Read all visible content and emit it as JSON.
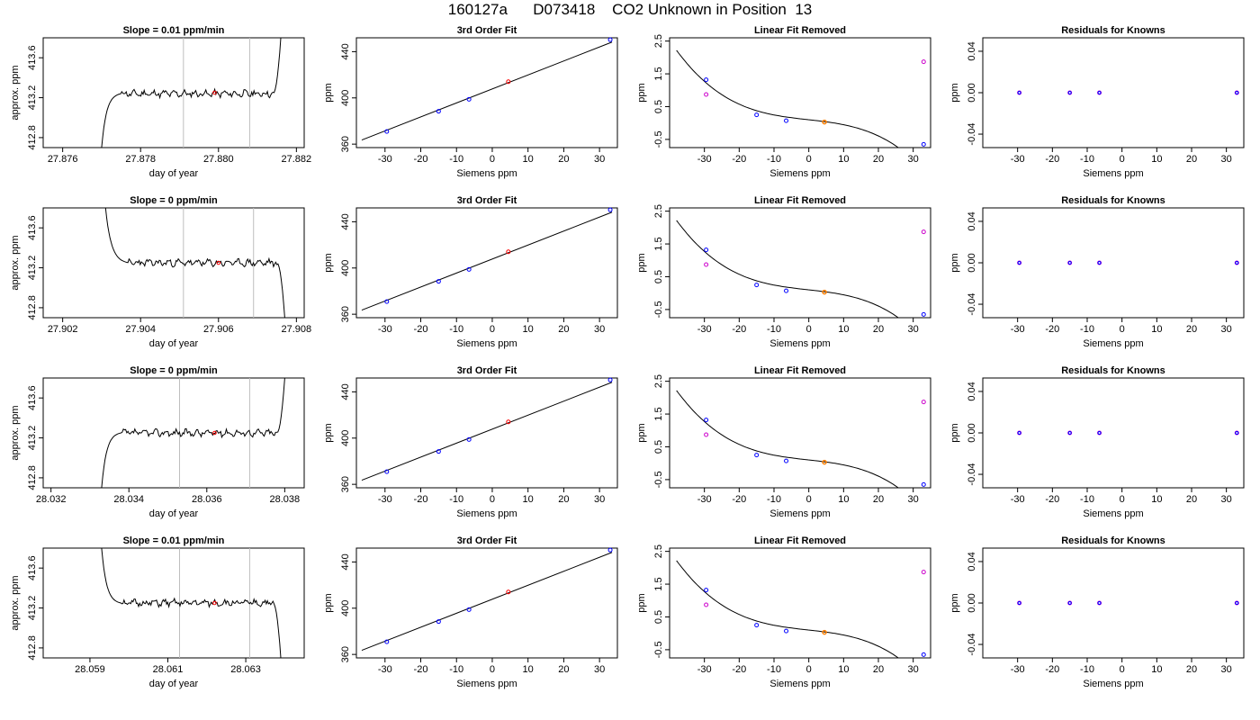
{
  "page_title": "160127a      D073418    CO2 Unknown in Position  13",
  "colors": {
    "known": "#0000ff",
    "unknown": "#ff0000",
    "residual": "#cc00cc",
    "raw_known": "#cc00cc",
    "linear_unknown": "#ff7f00",
    "line": "#000000",
    "window": "#bebebe"
  },
  "rows": [
    {
      "time_panel": {
        "title": "Slope =  0.01  ppm/min",
        "xlabel": "day of year",
        "ylabel": "approx. ppm",
        "xlim": [
          27.8755,
          27.8822
        ],
        "ylim": [
          412.7,
          413.8
        ],
        "xticks": [
          27.876,
          27.878,
          27.88,
          27.882
        ],
        "xtick_labels": [
          "27.876",
          "27.878",
          "27.880",
          "27.882"
        ],
        "yticks": [
          412.8,
          413.2,
          413.6
        ],
        "ytick_labels": [
          "412.8",
          "413.2",
          "413.6"
        ],
        "window": [
          27.8791,
          27.8808
        ],
        "mean_point": {
          "x": 27.8799,
          "y": 413.25
        },
        "trace": {
          "x0": 27.877,
          "rise_end": 27.8775,
          "plateau_end": 27.8814,
          "x_end": 27.8816,
          "start_y": 412.7,
          "plateau_y": 413.24,
          "end_y": 413.8,
          "start_dir": "up",
          "end_dir": "up",
          "seed": 11
        }
      },
      "fit_panel": {
        "title": "3rd Order Fit",
        "xlabel": "Siemens ppm",
        "ylabel": "ppm",
        "xlim": [
          -38,
          35
        ],
        "ylim": [
          357,
          452
        ],
        "xticks": [
          -30,
          -20,
          -10,
          0,
          10,
          20,
          30
        ],
        "yticks": [
          360,
          400,
          440
        ],
        "curve_intercept": 413.2,
        "curve_slope": 1.21,
        "known_points": [
          [
            -29.5,
            370.9
          ],
          [
            -15,
            388.4
          ],
          [
            -6.5,
            398.8
          ],
          [
            33,
            450.3
          ]
        ],
        "unknown_points": [
          [
            4.5,
            414.0
          ]
        ]
      },
      "linear_panel": {
        "title": "Linear Fit Removed",
        "xlabel": "Siemens ppm",
        "ylabel": "ppm",
        "xlim": [
          -40,
          35
        ],
        "ylim": [
          -0.75,
          2.6
        ],
        "xticks": [
          -30,
          -20,
          -10,
          0,
          10,
          20,
          30
        ],
        "yticks": [
          -0.5,
          0.5,
          1.5,
          2.5
        ],
        "curve": {
          "a": 0.1,
          "b": -0.0118,
          "c": -2.5e-05,
          "d": -3.11e-05
        },
        "known_points": [
          [
            -29.5,
            1.32
          ],
          [
            -15,
            0.25
          ],
          [
            -6.5,
            0.07
          ],
          [
            33,
            -0.65
          ]
        ],
        "raw_points": [
          [
            -29.5,
            0.87
          ],
          [
            33,
            1.87
          ]
        ],
        "unknown_points": [
          [
            4.5,
            0.03
          ]
        ]
      },
      "residual_panel": {
        "title": "Residuals for Knowns",
        "xlabel": "Siemens ppm",
        "ylabel": "ppm",
        "xlim": [
          -40,
          35
        ],
        "ylim": [
          -0.053,
          0.053
        ],
        "xticks": [
          -30,
          -20,
          -10,
          0,
          10,
          20,
          30
        ],
        "yticks": [
          -0.04,
          0,
          0.04
        ],
        "ytick_labels": [
          "-0.04",
          "0.00",
          "0.04"
        ],
        "points": [
          [
            -29.5,
            0
          ],
          [
            -15,
            0
          ],
          [
            -6.5,
            0
          ],
          [
            33,
            0
          ]
        ]
      }
    },
    {
      "time_panel": {
        "title": "Slope =  0  ppm/min",
        "xlabel": "day of year",
        "ylabel": "approx. ppm",
        "xlim": [
          27.9015,
          27.9082
        ],
        "ylim": [
          412.7,
          413.8
        ],
        "xticks": [
          27.902,
          27.904,
          27.906,
          27.908
        ],
        "xtick_labels": [
          "27.902",
          "27.904",
          "27.906",
          "27.908"
        ],
        "yticks": [
          412.8,
          413.2,
          413.6
        ],
        "ytick_labels": [
          "412.8",
          "413.2",
          "413.6"
        ],
        "window": [
          27.9051,
          27.9069
        ],
        "mean_point": {
          "x": 27.906,
          "y": 413.25
        },
        "trace": {
          "x0": 27.9031,
          "rise_end": 27.9037,
          "plateau_end": 27.9075,
          "x_end": 27.9077,
          "start_y": 413.8,
          "plateau_y": 413.25,
          "end_y": 412.7,
          "start_dir": "down",
          "end_dir": "down",
          "seed": 23
        }
      },
      "fit_panel": {
        "title": "3rd Order Fit",
        "xlabel": "Siemens ppm",
        "ylabel": "ppm",
        "xlim": [
          -38,
          35
        ],
        "ylim": [
          357,
          452
        ],
        "xticks": [
          -30,
          -20,
          -10,
          0,
          10,
          20,
          30
        ],
        "yticks": [
          360,
          400,
          440
        ],
        "curve_intercept": 413.2,
        "curve_slope": 1.21,
        "known_points": [
          [
            -29.5,
            370.9
          ],
          [
            -15,
            388.4
          ],
          [
            -6.5,
            398.8
          ],
          [
            33,
            450.3
          ]
        ],
        "unknown_points": [
          [
            4.5,
            414.0
          ]
        ]
      },
      "linear_panel": {
        "title": "Linear Fit Removed",
        "xlabel": "Siemens ppm",
        "ylabel": "ppm",
        "xlim": [
          -40,
          35
        ],
        "ylim": [
          -0.75,
          2.6
        ],
        "xticks": [
          -30,
          -20,
          -10,
          0,
          10,
          20,
          30
        ],
        "yticks": [
          -0.5,
          0.5,
          1.5,
          2.5
        ],
        "curve": {
          "a": 0.1,
          "b": -0.0118,
          "c": -2.5e-05,
          "d": -3.11e-05
        },
        "known_points": [
          [
            -29.5,
            1.32
          ],
          [
            -15,
            0.25
          ],
          [
            -6.5,
            0.07
          ],
          [
            33,
            -0.65
          ]
        ],
        "raw_points": [
          [
            -29.5,
            0.87
          ],
          [
            33,
            1.87
          ]
        ],
        "unknown_points": [
          [
            4.5,
            0.03
          ]
        ]
      },
      "residual_panel": {
        "title": "Residuals for Knowns",
        "xlabel": "Siemens ppm",
        "ylabel": "ppm",
        "xlim": [
          -40,
          35
        ],
        "ylim": [
          -0.053,
          0.053
        ],
        "xticks": [
          -30,
          -20,
          -10,
          0,
          10,
          20,
          30
        ],
        "yticks": [
          -0.04,
          0,
          0.04
        ],
        "ytick_labels": [
          "-0.04",
          "0.00",
          "0.04"
        ],
        "points": [
          [
            -29.5,
            0
          ],
          [
            -15,
            0
          ],
          [
            -6.5,
            0
          ],
          [
            33,
            0
          ]
        ]
      }
    },
    {
      "time_panel": {
        "title": "Slope =  0  ppm/min",
        "xlabel": "day of year",
        "ylabel": "approx. ppm",
        "xlim": [
          28.0318,
          28.0385
        ],
        "ylim": [
          412.7,
          413.8
        ],
        "xticks": [
          28.032,
          28.034,
          28.036,
          28.038
        ],
        "xtick_labels": [
          "28.032",
          "28.034",
          "28.036",
          "28.038"
        ],
        "yticks": [
          412.8,
          413.2,
          413.6
        ],
        "ytick_labels": [
          "412.8",
          "413.2",
          "413.6"
        ],
        "window": [
          28.0353,
          28.0371
        ],
        "mean_point": {
          "x": 28.0362,
          "y": 413.25
        },
        "trace": {
          "x0": 28.0333,
          "rise_end": 28.0338,
          "plateau_end": 28.0378,
          "x_end": 28.038,
          "start_y": 412.7,
          "plateau_y": 413.25,
          "end_y": 413.8,
          "start_dir": "up",
          "end_dir": "up",
          "seed": 37
        }
      },
      "fit_panel": {
        "title": "3rd Order Fit",
        "xlabel": "Siemens ppm",
        "ylabel": "ppm",
        "xlim": [
          -38,
          35
        ],
        "ylim": [
          357,
          452
        ],
        "xticks": [
          -30,
          -20,
          -10,
          0,
          10,
          20,
          30
        ],
        "yticks": [
          360,
          400,
          440
        ],
        "curve_intercept": 413.2,
        "curve_slope": 1.21,
        "known_points": [
          [
            -29.5,
            370.9
          ],
          [
            -15,
            388.4
          ],
          [
            -6.5,
            398.8
          ],
          [
            33,
            450.3
          ]
        ],
        "unknown_points": [
          [
            4.5,
            414.0
          ]
        ]
      },
      "linear_panel": {
        "title": "Linear Fit Removed",
        "xlabel": "Siemens ppm",
        "ylabel": "ppm",
        "xlim": [
          -40,
          35
        ],
        "ylim": [
          -0.75,
          2.6
        ],
        "xticks": [
          -30,
          -20,
          -10,
          0,
          10,
          20,
          30
        ],
        "yticks": [
          -0.5,
          0.5,
          1.5,
          2.5
        ],
        "curve": {
          "a": 0.1,
          "b": -0.0118,
          "c": -2.5e-05,
          "d": -3.11e-05
        },
        "known_points": [
          [
            -29.5,
            1.32
          ],
          [
            -15,
            0.25
          ],
          [
            -6.5,
            0.07
          ],
          [
            33,
            -0.65
          ]
        ],
        "raw_points": [
          [
            -29.5,
            0.87
          ],
          [
            33,
            1.87
          ]
        ],
        "unknown_points": [
          [
            4.5,
            0.03
          ]
        ]
      },
      "residual_panel": {
        "title": "Residuals for Knowns",
        "xlabel": "Siemens ppm",
        "ylabel": "ppm",
        "xlim": [
          -40,
          35
        ],
        "ylim": [
          -0.053,
          0.053
        ],
        "xticks": [
          -30,
          -20,
          -10,
          0,
          10,
          20,
          30
        ],
        "yticks": [
          -0.04,
          0,
          0.04
        ],
        "ytick_labels": [
          "-0.04",
          "0.00",
          "0.04"
        ],
        "points": [
          [
            -29.5,
            0
          ],
          [
            -15,
            0
          ],
          [
            -6.5,
            0
          ],
          [
            33,
            0
          ]
        ]
      }
    },
    {
      "time_panel": {
        "title": "Slope =  0.01  ppm/min",
        "xlabel": "day of year",
        "ylabel": "approx. ppm",
        "xlim": [
          28.0578,
          28.0645
        ],
        "ylim": [
          412.7,
          413.8
        ],
        "xticks": [
          28.059,
          28.061,
          28.063
        ],
        "xtick_labels": [
          "28.059",
          "28.061",
          "28.063"
        ],
        "yticks": [
          412.8,
          413.2,
          413.6
        ],
        "ytick_labels": [
          "412.8",
          "413.2",
          "413.6"
        ],
        "window": [
          28.0613,
          28.0631
        ],
        "mean_point": {
          "x": 28.0622,
          "y": 413.25
        },
        "trace": {
          "x0": 28.0593,
          "rise_end": 28.0598,
          "plateau_end": 28.0637,
          "x_end": 28.0639,
          "start_y": 413.8,
          "plateau_y": 413.25,
          "end_y": 412.7,
          "start_dir": "down",
          "end_dir": "down",
          "seed": 51
        }
      },
      "fit_panel": {
        "title": "3rd Order Fit",
        "xlabel": "Siemens ppm",
        "ylabel": "ppm",
        "xlim": [
          -38,
          35
        ],
        "ylim": [
          357,
          452
        ],
        "xticks": [
          -30,
          -20,
          -10,
          0,
          10,
          20,
          30
        ],
        "yticks": [
          360,
          400,
          440
        ],
        "curve_intercept": 413.2,
        "curve_slope": 1.21,
        "known_points": [
          [
            -29.5,
            370.9
          ],
          [
            -15,
            388.4
          ],
          [
            -6.5,
            398.8
          ],
          [
            33,
            450.3
          ]
        ],
        "unknown_points": [
          [
            4.5,
            414.0
          ]
        ]
      },
      "linear_panel": {
        "title": "Linear Fit Removed",
        "xlabel": "Siemens ppm",
        "ylabel": "ppm",
        "xlim": [
          -40,
          35
        ],
        "ylim": [
          -0.75,
          2.6
        ],
        "xticks": [
          -30,
          -20,
          -10,
          0,
          10,
          20,
          30
        ],
        "yticks": [
          -0.5,
          0.5,
          1.5,
          2.5
        ],
        "curve": {
          "a": 0.1,
          "b": -0.0118,
          "c": -2.5e-05,
          "d": -3.11e-05
        },
        "known_points": [
          [
            -29.5,
            1.32
          ],
          [
            -15,
            0.25
          ],
          [
            -6.5,
            0.07
          ],
          [
            33,
            -0.65
          ]
        ],
        "raw_points": [
          [
            -29.5,
            0.87
          ],
          [
            33,
            1.87
          ]
        ],
        "unknown_points": [
          [
            4.5,
            0.03
          ]
        ]
      },
      "residual_panel": {
        "title": "Residuals for Knowns",
        "xlabel": "Siemens ppm",
        "ylabel": "ppm",
        "xlim": [
          -40,
          35
        ],
        "ylim": [
          -0.053,
          0.053
        ],
        "xticks": [
          -30,
          -20,
          -10,
          0,
          10,
          20,
          30
        ],
        "yticks": [
          -0.04,
          0,
          0.04
        ],
        "ytick_labels": [
          "-0.04",
          "0.00",
          "0.04"
        ],
        "points": [
          [
            -29.5,
            0
          ],
          [
            -15,
            0
          ],
          [
            -6.5,
            0
          ],
          [
            33,
            0
          ]
        ]
      }
    }
  ],
  "chart_data": {
    "type": "scatter",
    "title": "160127a      D073418    CO2 Unknown in Position  13",
    "panels_per_row": [
      "Slope =  …  ppm/min (trace vs day of year)",
      "3rd Order Fit",
      "Linear Fit Removed",
      "Residuals for Knowns"
    ],
    "series": [
      {
        "name": "Knowns",
        "x": [
          -29.5,
          -15,
          -6.5,
          33
        ],
        "y": [
          370.9,
          388.4,
          398.8,
          450.3
        ]
      },
      {
        "name": "Unknown",
        "x": [
          4.5
        ],
        "y": [
          414.0
        ]
      }
    ],
    "xlabel": "Siemens ppm",
    "ylabel": "ppm",
    "ylim": [
      357,
      452
    ],
    "grid": false
  }
}
